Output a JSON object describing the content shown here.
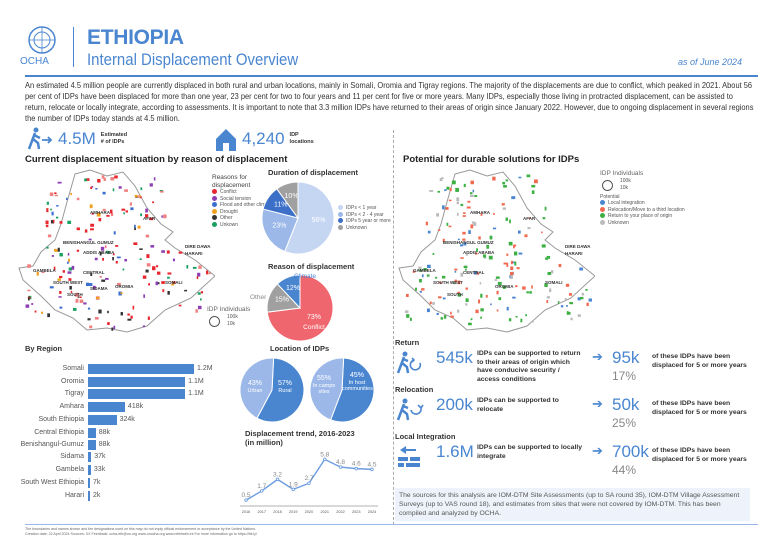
{
  "header": {
    "org": "OCHA",
    "title": "ETHIOPIA",
    "subtitle": "Internal Displacement Overview",
    "date": "as of June 2024"
  },
  "intro": "An estimated 4.5 million people are currently displaced in both rural and urban locations, mainly in Somali, Oromia and Tigray regions. The majority of the displacements are due to conflict, which peaked in 2021. About 56 per cent of IDPs have been displaced for more than one year, 23 per cent for two to four years and 11 per cent for five or more years. Many IDPs, especially those living in protracted displacement, can be assisted to return, relocate or locally integrate, according to assessments. It is important to note that 3.3 million IDPs have returned to their areas of origin since January 2022. However, due to ongoing displacement in several regions the number of IDPs today stands at 4.5 million.",
  "stats": [
    {
      "icon": "person-walking-arrow-icon",
      "value": "4.5M",
      "label1": "Estimated",
      "label2": "# of IDPs"
    },
    {
      "icon": "shelter-icon",
      "value": "4,240",
      "label1": "IDP",
      "label2": "locations"
    }
  ],
  "left_section": {
    "title": "Current displacement situation by reason of displacement",
    "map_legend": {
      "title1": "Reasons for",
      "title2": "displacement",
      "items": [
        {
          "label": "Conflict",
          "color": "#e8262e"
        },
        {
          "label": "Social tension",
          "color": "#8e3fb5"
        },
        {
          "label": "Flood and other climate",
          "color": "#3a6fd0"
        },
        {
          "label": "Drought",
          "color": "#f0a020"
        },
        {
          "label": "Other",
          "color": "#333333"
        },
        {
          "label": "Unkown",
          "color": "#1aa060"
        }
      ],
      "size_title": "IDP Individuals",
      "size_large": "100k",
      "size_small": "10k"
    },
    "map_labels": [
      "AFAR",
      "AMHARA",
      "BENISHANGUL GUMUZ",
      "ADDIS ABABA",
      "DIRE DAWA",
      "HARARI",
      "GAMBELA",
      "OROMIA",
      "SOMALI",
      "CENTRAL",
      "SOUTH WEST",
      "SOUTH",
      "SIDAMA"
    ]
  },
  "right_section": {
    "title": "Potential for durable solutions for IDPs",
    "map_legend": {
      "size_title": "IDP Individuals",
      "size_large": "100k",
      "size_small": "10k",
      "potential_title": "Potential",
      "items": [
        {
          "label": "Local integration",
          "color": "#4a86d0"
        },
        {
          "label": "Relocation/Move to a third location",
          "color": "#f06a50"
        },
        {
          "label": "Return to your place of origin",
          "color": "#3cb043"
        },
        {
          "label": "Unknown",
          "color": "#bbbbbb"
        }
      ]
    },
    "map_labels": [
      "AFAR",
      "AMHARA",
      "BENISHANGUL GUMUZ",
      "ADDIS ABABA",
      "DIRE DAWA",
      "HARARI",
      "GAMBELA",
      "OROMIA",
      "SOMALI",
      "CENTRAL",
      "SOUTH WEST",
      "SOUTH"
    ]
  },
  "chart_data": [
    {
      "type": "pie",
      "title": "Duration of displacement",
      "slices": [
        {
          "name": "IDPs < 1 year",
          "value": 56,
          "label": "56%",
          "color": "#c5d6f2"
        },
        {
          "name": "IDPs < 2 - 4 year",
          "value": 23,
          "label": "23%",
          "color": "#9bb8e8"
        },
        {
          "name": "IDPs 5 year or more",
          "value": 11,
          "label": "11%",
          "color": "#3b6fc8"
        },
        {
          "name": "Unknown",
          "value": 10,
          "label": "10%",
          "color": "#a0a0a0"
        }
      ]
    },
    {
      "type": "pie",
      "title": "Reason of displacement",
      "slices": [
        {
          "name": "Conflict",
          "value": 73,
          "label": "73%",
          "color": "#f0666e"
        },
        {
          "name": "Other",
          "value": 15,
          "label": "15%",
          "color": "#a0a0a0"
        },
        {
          "name": "Climate",
          "value": 12,
          "label": "12%",
          "color": "#4a86d0"
        }
      ]
    },
    {
      "type": "bar",
      "title": "By Region",
      "orientation": "horizontal",
      "categories": [
        "Somali",
        "Oromia",
        "Tigray",
        "Amhara",
        "South Ethiopia",
        "Central Ethiopia",
        "Benishangul-Gumuz",
        "Sidama",
        "Gambela",
        "South West Ethiopia",
        "Harari"
      ],
      "values": [
        1200000,
        1100000,
        1100000,
        418000,
        324000,
        88000,
        88000,
        37000,
        33000,
        7000,
        2000
      ],
      "labels": [
        "1.2M",
        "1.1M",
        "1.1M",
        "418k",
        "324k",
        "88k",
        "88k",
        "37k",
        "33k",
        "7k",
        "2k"
      ]
    },
    {
      "type": "pie",
      "title": "Location of IDPs",
      "slices": [
        {
          "name": "Rural",
          "value": 57,
          "label": "57%",
          "color": "#4a86d0"
        },
        {
          "name": "Urban",
          "value": 43,
          "label": "43%",
          "color": "#9bb8e8"
        }
      ]
    },
    {
      "type": "pie",
      "title": "",
      "slices": [
        {
          "name": "In camps sites",
          "value": 55,
          "label": "55%",
          "color": "#4a86d0"
        },
        {
          "name": "In host communities",
          "value": 45,
          "label": "45%",
          "color": "#9bb8e8"
        }
      ]
    },
    {
      "type": "line",
      "title": "Displacement trend, 2016-2023",
      "subtitle": "(in million)",
      "x": [
        "2016",
        "2017",
        "2018",
        "2019",
        "2020",
        "2021",
        "2022",
        "2023",
        "2024"
      ],
      "values": [
        0.5,
        1.7,
        3.2,
        1.9,
        2.7,
        5.8,
        4.8,
        4.6,
        4.5
      ],
      "ylim": [
        0,
        6.5
      ]
    }
  ],
  "solutions": [
    {
      "heading": "Return",
      "icon": "return-icon",
      "value": "545k",
      "desc": "IDPs can be supported to return to their areas of origin which have conducive security / access conditions",
      "sub_value": "95k",
      "sub_pct": "17%",
      "sub_desc": "of these IDPs have been displaced for 5 or more years"
    },
    {
      "heading": "Relocation",
      "icon": "relocation-icon",
      "value": "200k",
      "desc": "IDPs can be supported to relocate",
      "sub_value": "50k",
      "sub_pct": "25%",
      "sub_desc": "of these IDPs have been displaced for 5 or more years"
    },
    {
      "heading": "Local Integration",
      "icon": "local-integration-icon",
      "value": "1.6M",
      "desc": "IDPs can be supported to locally integrate",
      "sub_value": "700k",
      "sub_pct": "44%",
      "sub_desc": "of these IDPs have been displaced for 5 or more years"
    }
  ],
  "sources": "The sources for this analysis are IOM-DTM Site Assessments (up to SA round 35), IOM-DTM Village Assessment Surveys (up to VAS round 18), and estimates from sites that were not covered by IOM-DTM. This has been compiled and analyzed by OCHA.",
  "footer": {
    "line1": "The boundaries and names shown and the designations used on this map do not imply official endorsement or acceptance by the United Nations.",
    "line2": "Creation date: 22 April 2024   Sources: XX   Feedback: ocha-eth@un.org   www.unocha.org   www.reliefweb.int   For more information go to https://bit.ly/"
  }
}
